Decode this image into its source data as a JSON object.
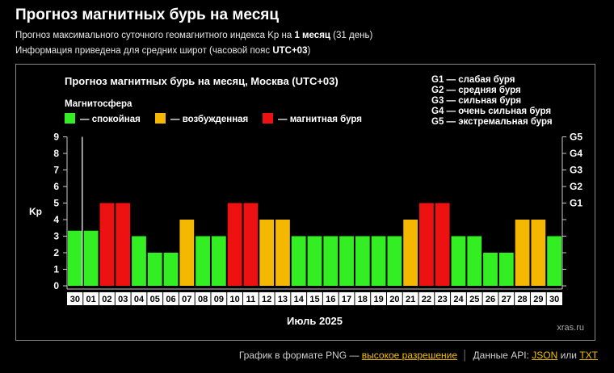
{
  "page": {
    "title": "Прогноз магнитных бурь на месяц",
    "info1_pre": "Прогноз максимального суточного геомагнитного индекса Kp на ",
    "info1_bold": "1 месяц",
    "info1_post": " (31 день)",
    "info2_pre": "Информация приведена для средних широт (часовой пояс ",
    "info2_bold": "UTC+03",
    "info2_post": ")"
  },
  "footer": {
    "png_text": "График в формате PNG — ",
    "png_link": "высокое разрешение",
    "api_text": "Данные API: ",
    "json_link": "JSON",
    "or_text": " или ",
    "txt_link": "TXT"
  },
  "chart_data": {
    "type": "bar",
    "title": "Прогноз магнитных бурь на месяц, Москва (UTC+03)",
    "xlabel": "Июль 2025",
    "ylabel": "Kp",
    "ylim": [
      0,
      9
    ],
    "yticks": [
      "0",
      "1",
      "2",
      "3",
      "4",
      "5",
      "6",
      "7",
      "8",
      "9"
    ],
    "watermark": "xras.ru",
    "legend_title": "Магнитосфера",
    "legend": [
      {
        "label": "— спокойная",
        "color": "#33ee22"
      },
      {
        "label": "— возбужденная",
        "color": "#f5b800"
      },
      {
        "label": "— магнитная буря",
        "color": "#ee1111"
      }
    ],
    "g_scale": [
      {
        "level": "G1",
        "kp": 5
      },
      {
        "level": "G2",
        "kp": 6
      },
      {
        "level": "G3",
        "kp": 7
      },
      {
        "level": "G4",
        "kp": 8
      },
      {
        "level": "G5",
        "kp": 9
      }
    ],
    "g_legend": [
      "G1 — слабая буря",
      "G2 — средняя буря",
      "G3 — сильная буря",
      "G4 — очень сильная буря",
      "G5 — экстремальная буря"
    ],
    "colors": {
      "quiet": "#33ee22",
      "active": "#f5b800",
      "storm": "#ee1111"
    },
    "categories": [
      "30",
      "01",
      "02",
      "03",
      "04",
      "05",
      "06",
      "07",
      "08",
      "09",
      "10",
      "11",
      "12",
      "13",
      "14",
      "15",
      "16",
      "17",
      "18",
      "19",
      "20",
      "21",
      "22",
      "23",
      "24",
      "25",
      "26",
      "27",
      "28",
      "29",
      "30"
    ],
    "values": [
      3.33,
      3.33,
      5,
      5,
      3,
      2,
      2,
      4,
      3,
      3,
      5,
      5,
      4,
      4,
      3,
      3,
      3,
      3,
      3,
      3,
      3,
      4,
      5,
      5,
      3,
      3,
      2,
      2,
      4,
      4,
      3
    ],
    "status": [
      "quiet",
      "quiet",
      "storm",
      "storm",
      "quiet",
      "quiet",
      "quiet",
      "active",
      "quiet",
      "quiet",
      "storm",
      "storm",
      "active",
      "active",
      "quiet",
      "quiet",
      "quiet",
      "quiet",
      "quiet",
      "quiet",
      "quiet",
      "active",
      "storm",
      "storm",
      "quiet",
      "quiet",
      "quiet",
      "quiet",
      "active",
      "active",
      "quiet"
    ],
    "current_day_marker": "01"
  }
}
